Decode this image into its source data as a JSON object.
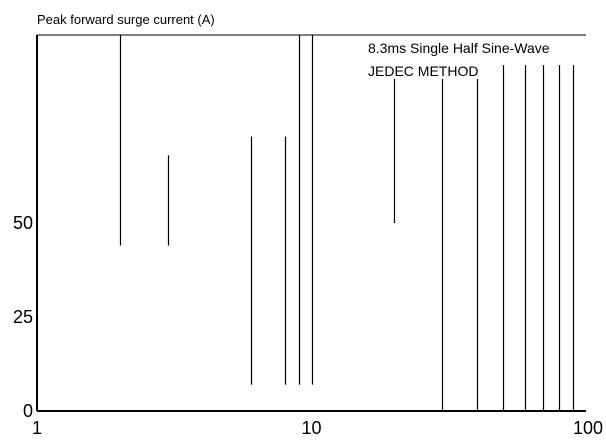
{
  "chart_data": {
    "type": "line",
    "title": "",
    "ylabel": "Peak forward surge current (A)",
    "xlabel": "",
    "xscale": "log",
    "xlim": [
      1,
      100
    ],
    "ylim": [
      0,
      100
    ],
    "grid": false,
    "x_ticks": [
      {
        "value": 1,
        "label": "1"
      },
      {
        "value": 10,
        "label": "10"
      },
      {
        "value": 100,
        "label": "100"
      }
    ],
    "y_ticks": [
      {
        "value": 0,
        "label": "0"
      },
      {
        "value": 25,
        "label": "25"
      },
      {
        "value": 50,
        "label": "50"
      }
    ],
    "annotations": [
      "8.3ms Single Half Sine-Wave",
      "JEDEC METHOD"
    ],
    "lines": [
      {
        "x": 2,
        "y_from": 44,
        "y_to": 100
      },
      {
        "x": 3,
        "y_from": 44,
        "y_to": 68
      },
      {
        "x": 6,
        "y_from": 7,
        "y_to": 73
      },
      {
        "x": 8,
        "y_from": 7,
        "y_to": 73
      },
      {
        "x": 9,
        "y_from": 7,
        "y_to": 100
      },
      {
        "x": 10,
        "y_from": 7,
        "y_to": 100
      },
      {
        "x": 20,
        "y_from": 50,
        "y_to": 89
      },
      {
        "x": 30,
        "y_from": 0,
        "y_to": 89
      },
      {
        "x": 40,
        "y_from": 0,
        "y_to": 89
      },
      {
        "x": 50,
        "y_from": 0,
        "y_to": 92
      },
      {
        "x": 60,
        "y_from": 0,
        "y_to": 92
      },
      {
        "x": 70,
        "y_from": 0,
        "y_to": 92
      },
      {
        "x": 80,
        "y_from": 0,
        "y_to": 92
      },
      {
        "x": 90,
        "y_from": 0,
        "y_to": 92
      }
    ],
    "line_color": "#000000"
  }
}
